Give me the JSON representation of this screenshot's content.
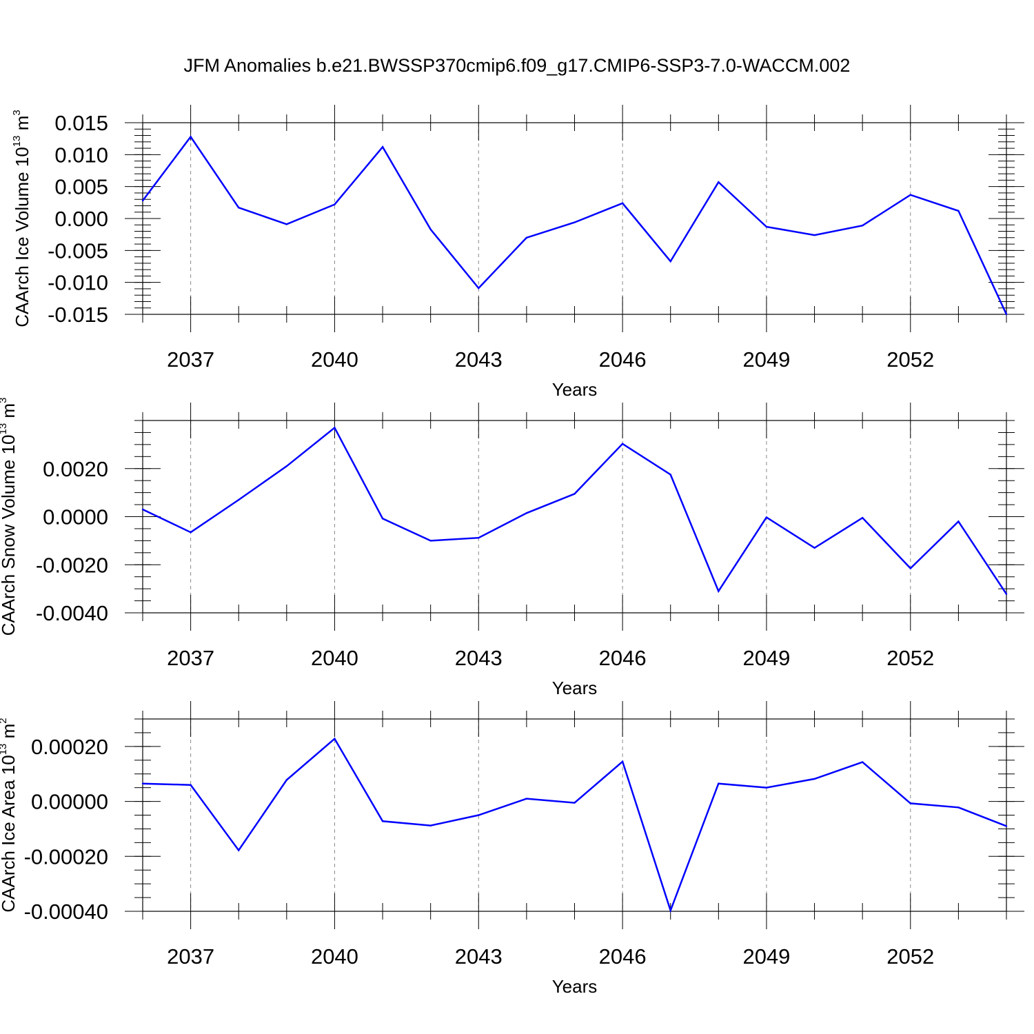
{
  "title": "JFM Anomalies b.e21.BWSSP370cmip6.f09_g17.CMIP6-SSP3-7.0-WACCM.002",
  "line_color": "#0000ff",
  "chart_data": [
    {
      "type": "line",
      "xlabel": "Years",
      "ylabel_text": "CAArch Ice Volume 10",
      "ylabel_exp": "13",
      "ylabel_unit": " m",
      "ylabel_unit_exp": "3",
      "xlim": [
        2036,
        2054
      ],
      "ylim": [
        -0.015,
        0.015
      ],
      "x_ticks": [
        2037,
        2040,
        2043,
        2046,
        2049,
        2052
      ],
      "y_ticks": [
        -0.015,
        -0.01,
        -0.005,
        0,
        0.005,
        0.01,
        0.015
      ],
      "y_tick_labels": [
        "-0.015",
        "-0.010",
        "-0.005",
        "0.000",
        "0.005",
        "0.010",
        "0.015"
      ],
      "grid": "vertical dashed at labeled years",
      "x": [
        2036,
        2037,
        2038,
        2039,
        2040,
        2041,
        2042,
        2043,
        2044,
        2045,
        2046,
        2047,
        2048,
        2049,
        2050,
        2051,
        2052,
        2053,
        2054
      ],
      "y": [
        0.0028,
        0.0128,
        0.0017,
        -0.0009,
        0.0022,
        0.0112,
        -0.0017,
        -0.0109,
        -0.003,
        -0.0006,
        0.0024,
        -0.0067,
        0.0057,
        -0.0013,
        -0.0026,
        -0.0011,
        0.0037,
        0.0012,
        -0.015
      ]
    },
    {
      "type": "line",
      "xlabel": "Years",
      "ylabel_text": "CAArch Snow Volume 10",
      "ylabel_exp": "13",
      "ylabel_unit": " m",
      "ylabel_unit_exp": "3",
      "xlim": [
        2036,
        2054
      ],
      "ylim": [
        -0.004,
        0.004
      ],
      "x_ticks": [
        2037,
        2040,
        2043,
        2046,
        2049,
        2052
      ],
      "y_ticks": [
        -0.004,
        -0.002,
        0,
        0.002
      ],
      "y_tick_labels": [
        "-0.0040",
        "-0.0020",
        "0.0000",
        "0.0020"
      ],
      "grid": "vertical dashed at labeled years",
      "x": [
        2036,
        2037,
        2038,
        2039,
        2040,
        2041,
        2042,
        2043,
        2044,
        2045,
        2046,
        2047,
        2048,
        2049,
        2050,
        2051,
        2052,
        2053,
        2054
      ],
      "y": [
        0.0003,
        -0.00065,
        0.0007,
        0.0021,
        0.0037,
        -8e-05,
        -0.001,
        -0.00088,
        0.00015,
        0.00095,
        0.00303,
        0.00175,
        -0.0031,
        -3e-05,
        -0.0013,
        -5e-05,
        -0.00215,
        -0.0002,
        -0.00322
      ]
    },
    {
      "type": "line",
      "xlabel": "Years",
      "ylabel_text": "CAArch Ice Area 10",
      "ylabel_exp": "13",
      "ylabel_unit": " m",
      "ylabel_unit_exp": "2",
      "xlim": [
        2036,
        2054
      ],
      "ylim": [
        -0.0004,
        0.0003
      ],
      "x_ticks": [
        2037,
        2040,
        2043,
        2046,
        2049,
        2052
      ],
      "y_ticks": [
        -0.0004,
        -0.0002,
        0,
        0.0002
      ],
      "y_tick_labels": [
        "-0.00040",
        "-0.00020",
        "0.00000",
        "0.00020"
      ],
      "grid": "vertical dashed at labeled years",
      "x": [
        2036,
        2037,
        2038,
        2039,
        2040,
        2041,
        2042,
        2043,
        2044,
        2045,
        2046,
        2047,
        2048,
        2049,
        2050,
        2051,
        2052,
        2053,
        2054
      ],
      "y": [
        6.5e-05,
        6e-05,
        -0.000178,
        7.8e-05,
        0.000228,
        -7.2e-05,
        -8.8e-05,
        -5e-05,
        1e-05,
        -5e-06,
        0.000145,
        -0.000397,
        6.5e-05,
        5e-05,
        8.2e-05,
        0.000143,
        -7e-06,
        -2.2e-05,
        -9e-05
      ]
    }
  ]
}
